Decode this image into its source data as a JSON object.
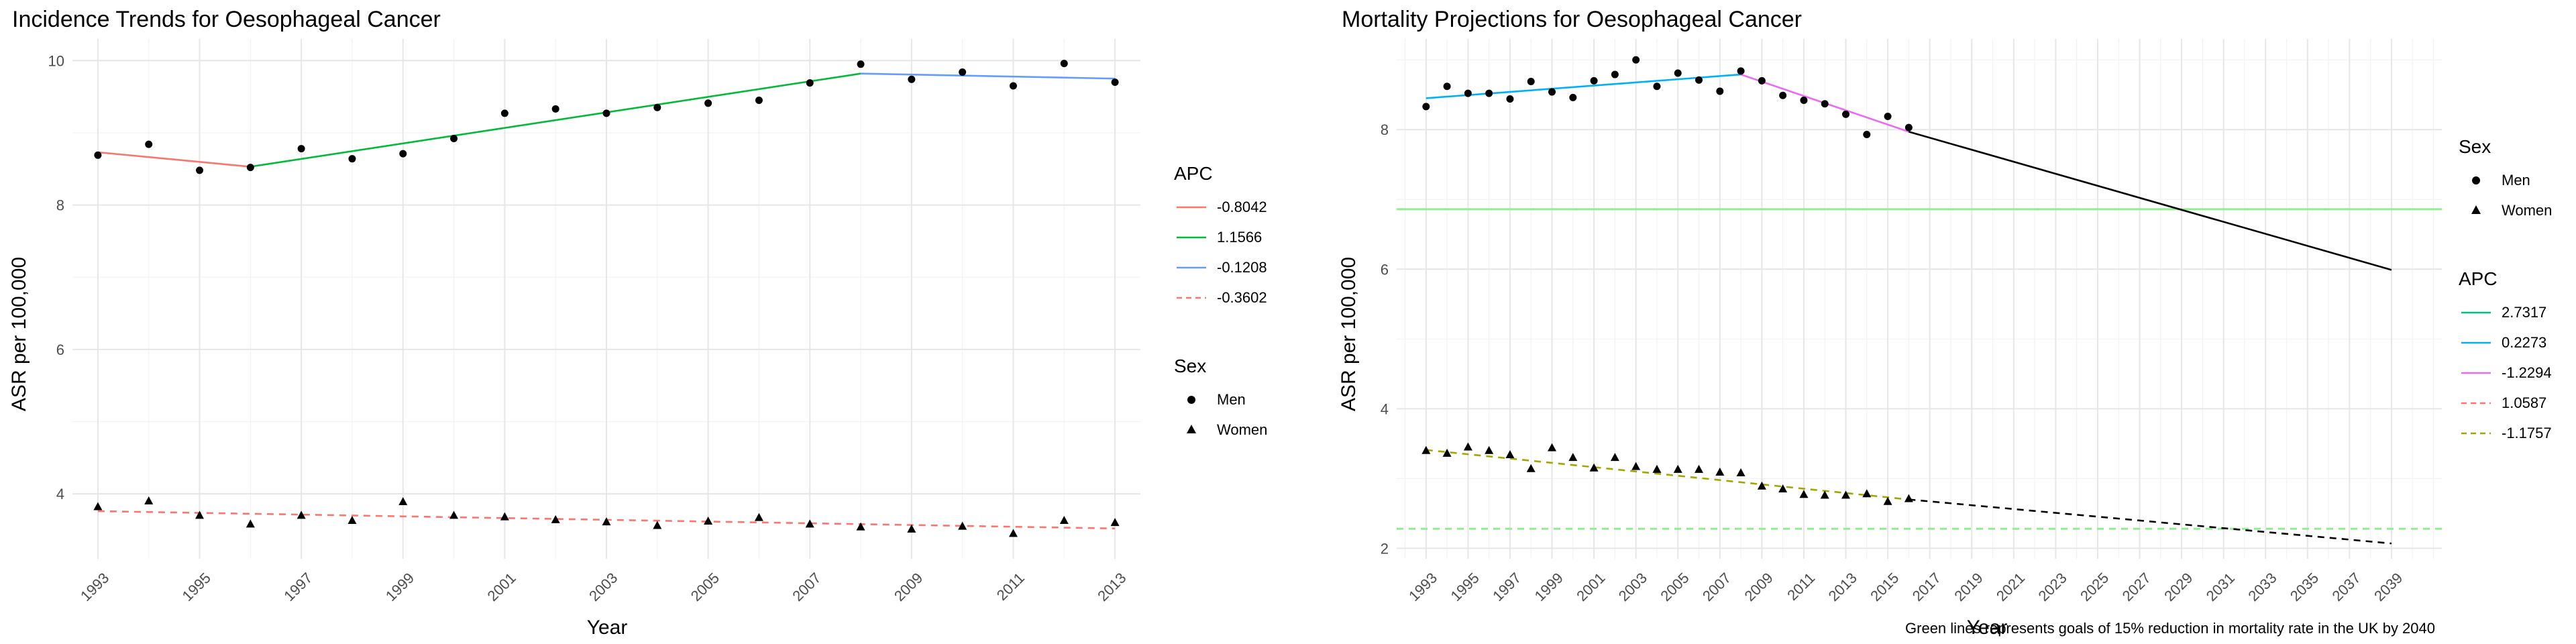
{
  "chart_data": [
    {
      "type": "scatter",
      "title": "Incidence Trends for Oesophageal Cancer",
      "xlabel": "Year",
      "ylabel": "ASR per 100,000",
      "xlim": [
        1992.5,
        2013.5
      ],
      "ylim": [
        3.1,
        10.3
      ],
      "xticks": [
        1993,
        1995,
        1997,
        1999,
        2001,
        2003,
        2005,
        2007,
        2009,
        2011,
        2013
      ],
      "yticks": [
        4,
        6,
        8,
        10
      ],
      "grid": true,
      "legend_placement": "right",
      "points": [
        {
          "group": "Men",
          "shape": "circle",
          "x": [
            1993,
            1994,
            1995,
            1996,
            1997,
            1998,
            1999,
            2000,
            2001,
            2002,
            2003,
            2004,
            2005,
            2006,
            2007,
            2008,
            2009,
            2010,
            2011,
            2012,
            2013
          ],
          "y": [
            8.69,
            8.84,
            8.48,
            8.52,
            8.78,
            8.64,
            8.71,
            8.92,
            9.27,
            9.33,
            9.27,
            9.35,
            9.41,
            9.45,
            9.69,
            9.95,
            9.74,
            9.84,
            9.65,
            9.96,
            9.7
          ]
        },
        {
          "group": "Women",
          "shape": "triangle",
          "x": [
            1993,
            1994,
            1995,
            1996,
            1997,
            1998,
            1999,
            2000,
            2001,
            2002,
            2003,
            2004,
            2005,
            2006,
            2007,
            2008,
            2009,
            2010,
            2011,
            2012,
            2013
          ],
          "y": [
            3.82,
            3.9,
            3.7,
            3.58,
            3.7,
            3.63,
            3.89,
            3.7,
            3.68,
            3.64,
            3.61,
            3.56,
            3.62,
            3.67,
            3.58,
            3.54,
            3.51,
            3.55,
            3.45,
            3.63,
            3.6
          ]
        }
      ],
      "trend_lines": [
        {
          "apc": "-0.8042",
          "color": "#F8766D",
          "dash": false,
          "x": [
            1993,
            1996
          ],
          "y": [
            8.73,
            8.53
          ]
        },
        {
          "apc": "1.1566",
          "color": "#00BA38",
          "dash": false,
          "x": [
            1996,
            2008
          ],
          "y": [
            8.53,
            9.82
          ]
        },
        {
          "apc": "-0.1208",
          "color": "#619CFF",
          "dash": false,
          "x": [
            2008,
            2013
          ],
          "y": [
            9.82,
            9.75
          ]
        },
        {
          "apc": "-0.3602",
          "color": "#F8766D",
          "dash": true,
          "x": [
            1993,
            2013
          ],
          "y": [
            3.76,
            3.52
          ]
        }
      ],
      "legends": [
        {
          "title": "APC",
          "entries": [
            "-0.8042",
            "1.1566",
            "-0.1208",
            "-0.3602"
          ]
        },
        {
          "title": "Sex",
          "entries": [
            "Men",
            "Women"
          ]
        }
      ]
    },
    {
      "type": "scatter",
      "title": "Mortality Projections for Oesophageal Cancer",
      "xlabel": "Year",
      "ylabel": "ASR per 100,000",
      "xlim": [
        1991.6,
        2041.4
      ],
      "ylim": [
        1.85,
        9.3
      ],
      "xticks": [
        1993,
        1995,
        1997,
        1999,
        2001,
        2003,
        2005,
        2007,
        2009,
        2011,
        2013,
        2015,
        2017,
        2019,
        2021,
        2023,
        2025,
        2027,
        2029,
        2031,
        2033,
        2035,
        2037,
        2039
      ],
      "yticks": [
        2,
        4,
        6,
        8
      ],
      "grid": true,
      "legend_placement": "right",
      "points": [
        {
          "group": "Men",
          "shape": "circle",
          "x": [
            1993,
            1994,
            1995,
            1996,
            1997,
            1998,
            1999,
            2000,
            2001,
            2002,
            2003,
            2004,
            2005,
            2006,
            2007,
            2008,
            2009,
            2010,
            2011,
            2012,
            2013,
            2014,
            2015,
            2016
          ],
          "y": [
            8.33,
            8.62,
            8.52,
            8.52,
            8.44,
            8.69,
            8.54,
            8.46,
            8.7,
            8.79,
            9.0,
            8.62,
            8.81,
            8.71,
            8.55,
            8.84,
            8.7,
            8.49,
            8.42,
            8.37,
            8.22,
            7.93,
            8.19,
            8.03
          ]
        },
        {
          "group": "Women",
          "shape": "triangle",
          "x": [
            1993,
            1994,
            1995,
            1996,
            1997,
            1998,
            1999,
            2000,
            2001,
            2002,
            2003,
            2004,
            2005,
            2006,
            2007,
            2008,
            2009,
            2010,
            2011,
            2012,
            2013,
            2014,
            2015,
            2016
          ],
          "y": [
            3.4,
            3.36,
            3.45,
            3.4,
            3.34,
            3.14,
            3.44,
            3.3,
            3.15,
            3.3,
            3.17,
            3.13,
            3.13,
            3.13,
            3.09,
            3.08,
            2.89,
            2.85,
            2.77,
            2.76,
            2.76,
            2.78,
            2.67,
            2.71
          ]
        }
      ],
      "trend_lines": [
        {
          "apc": "0.2273",
          "color": "#00B0F6",
          "dash": false,
          "x": [
            1993,
            2008
          ],
          "y": [
            8.45,
            8.79
          ]
        },
        {
          "apc": "-1.2294",
          "color": "#E76BF3",
          "dash": false,
          "x": [
            2008,
            2016
          ],
          "y": [
            8.79,
            7.97
          ]
        },
        {
          "apc": "-1.1757",
          "color": "#A3A500",
          "dash": true,
          "x": [
            1993,
            2016
          ],
          "y": [
            3.41,
            2.7
          ]
        },
        {
          "apc": "",
          "color": "#000000",
          "dash": false,
          "x": [
            2016,
            2039
          ],
          "y": [
            7.97,
            5.99
          ]
        },
        {
          "apc": "",
          "color": "#000000",
          "dash": true,
          "x": [
            2016,
            2039
          ],
          "y": [
            2.7,
            2.07
          ]
        }
      ],
      "goal_lines": [
        {
          "y": 6.86,
          "color": "#90EE90",
          "dash": false
        },
        {
          "y": 2.28,
          "color": "#90EE90",
          "dash": true
        }
      ],
      "legends": [
        {
          "title": "Sex",
          "entries": [
            "Men",
            "Women"
          ]
        },
        {
          "title": "APC",
          "entries": [
            "2.7317",
            "0.2273",
            "-1.2294",
            "1.0587",
            "-1.1757"
          ]
        }
      ],
      "legend_apc_styles": [
        {
          "color": "#00BF7D",
          "dash": false
        },
        {
          "color": "#00B0F6",
          "dash": false
        },
        {
          "color": "#E76BF3",
          "dash": false
        },
        {
          "color": "#F8766D",
          "dash": true
        },
        {
          "color": "#A3A500",
          "dash": true
        }
      ],
      "caption": "Green lines represents goals of 15% reduction in mortality rate in the UK by 2040"
    }
  ]
}
